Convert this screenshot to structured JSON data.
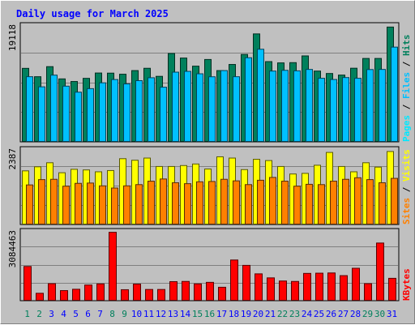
{
  "chart_data": {
    "type": "bar",
    "title": "Daily usage for March 2025",
    "categories": [
      "1",
      "2",
      "3",
      "4",
      "5",
      "6",
      "7",
      "8",
      "9",
      "10",
      "11",
      "12",
      "13",
      "14",
      "15",
      "16",
      "17",
      "18",
      "19",
      "20",
      "21",
      "22",
      "23",
      "24",
      "25",
      "26",
      "27",
      "28",
      "29",
      "30",
      "31"
    ],
    "weekend_days": [
      "1",
      "2",
      "8",
      "9",
      "15",
      "16",
      "22",
      "23",
      "29",
      "30"
    ],
    "panels": [
      {
        "id": "hits-panel",
        "max_label": "19118",
        "ymax": 19118,
        "series": [
          {
            "name": "Hits",
            "color": "#00805c",
            "values": [
              12190,
              10810,
              12470,
              10450,
              10020,
              10540,
              11420,
              11400,
              11220,
              11820,
              12200,
              10870,
              14640,
              13890,
              12550,
              13650,
              11820,
              12830,
              14480,
              17870,
              13300,
              13090,
              13130,
              14240,
              11740,
              11340,
              11080,
              12210,
              13820,
              13820,
              19000
            ]
          },
          {
            "name": "Files",
            "color": "#00c0ff",
            "values": [
              10810,
              9140,
              11070,
              9250,
              8260,
              8840,
              9800,
              10340,
              9620,
              10160,
              10640,
              9080,
              11560,
              11690,
              11290,
              10800,
              11820,
              10810,
              13940,
              15340,
              11740,
              11860,
              11780,
              12010,
              10550,
              10350,
              10670,
              10550,
              11990,
              12010,
              15690
            ]
          },
          {
            "name": "Pages",
            "color": "#00e8ff",
            "values": [
              null,
              null,
              null,
              null,
              null,
              null,
              null,
              null,
              null,
              null,
              null,
              null,
              null,
              null,
              null,
              null,
              null,
              null,
              null,
              null,
              null,
              null,
              null,
              null,
              null,
              null,
              null,
              null,
              null,
              null,
              null
            ]
          }
        ],
        "legend": [
          "Pages",
          "Files",
          "Hits"
        ],
        "legend_colors": [
          "#00e8ff",
          "#00c0ff",
          "#00805c"
        ]
      },
      {
        "id": "visits-panel",
        "max_label": "2387",
        "ymax": 2387,
        "series": [
          {
            "name": "Visits",
            "color": "#ffff00",
            "values": [
              1730,
              1860,
              1990,
              1670,
              1780,
              1760,
              1700,
              1740,
              2120,
              2070,
              2140,
              1870,
              1870,
              1900,
              1950,
              1790,
              2180,
              2140,
              1770,
              2100,
              2060,
              1870,
              1630,
              1650,
              1910,
              2320,
              1870,
              1700,
              1990,
              1850,
              2350
            ]
          },
          {
            "name": "Sites",
            "color": "#ff8000",
            "values": [
              1280,
              1450,
              1460,
              1240,
              1330,
              1340,
              1250,
              1180,
              1250,
              1290,
              1400,
              1470,
              1350,
              1320,
              1380,
              1390,
              1460,
              1410,
              1290,
              1430,
              1520,
              1400,
              1240,
              1300,
              1290,
              1400,
              1460,
              1510,
              1450,
              1350,
              1490
            ]
          }
        ],
        "legend": [
          "Sites",
          "/",
          "Visits"
        ],
        "legend_colors": [
          "#ff8000",
          "#000000",
          "#ffff00"
        ]
      },
      {
        "id": "kbytes-panel",
        "max_label": "3084463",
        "ymax": 3084463,
        "series": [
          {
            "name": "KBytes",
            "color": "#ff0000",
            "values": [
              1550000,
              350000,
              780000,
              470000,
              530000,
              720000,
              770000,
              3080000,
              510000,
              760000,
              520000,
              520000,
              870000,
              880000,
              770000,
              840000,
              620000,
              1840000,
              1600000,
              1220000,
              1040000,
              900000,
              880000,
              1240000,
              1250000,
              1260000,
              1140000,
              1470000,
              780000,
              2600000,
              1020000
            ]
          }
        ],
        "legend": [
          "KBytes"
        ],
        "legend_colors": [
          "#ff0000"
        ]
      }
    ],
    "colors": {
      "background": "#c0c0c0",
      "plot_bg": "#c0c0c0",
      "title": "#0000ff",
      "weekday_label": "#0000ff",
      "weekend_label": "#00805c",
      "axis": "#000000"
    }
  }
}
